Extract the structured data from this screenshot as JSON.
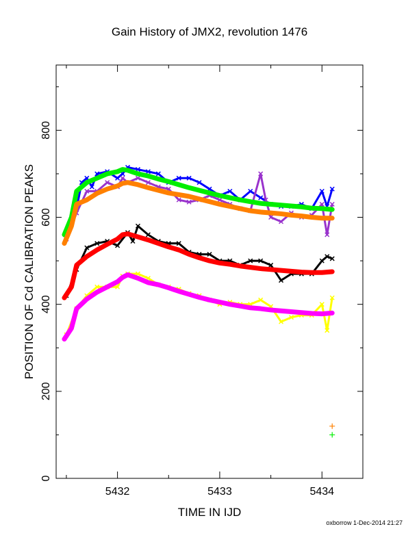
{
  "chart_data": {
    "type": "line",
    "title": "Gain History of JMX2, revolution 1476",
    "xlabel": "TIME IN IJD",
    "ylabel": "POSITION OF Cd CALIBRATION PEAKS",
    "xlim": [
      5431.4,
      5434.4
    ],
    "ylim": [
      0,
      950
    ],
    "xticks": [
      5432,
      5433,
      5434
    ],
    "yticks": [
      0,
      200,
      400,
      600,
      800
    ],
    "grid": false,
    "legend": "none",
    "footer": "oxborrow 1-Dec-2014 21:27",
    "series": [
      {
        "color": "#0000ff",
        "style": "scatter-line",
        "x": [
          5431.5,
          5431.6,
          5431.65,
          5431.7,
          5431.75,
          5431.8,
          5431.9,
          5432.0,
          5432.05,
          5432.1,
          5432.2,
          5432.3,
          5432.4,
          5432.5,
          5432.6,
          5432.7,
          5432.8,
          5432.9,
          5433.0,
          5433.1,
          5433.2,
          5433.3,
          5433.4,
          5433.5,
          5433.6,
          5433.7,
          5433.8,
          5433.9,
          5434.0,
          5434.05,
          5434.1
        ],
        "values": [
          560,
          620,
          680,
          690,
          670,
          700,
          705,
          690,
          700,
          715,
          710,
          705,
          700,
          680,
          690,
          690,
          680,
          665,
          650,
          660,
          640,
          660,
          645,
          630,
          625,
          625,
          630,
          620,
          660,
          625,
          665
        ]
      },
      {
        "color": "#9933cc",
        "style": "scatter-line",
        "x": [
          5431.5,
          5431.6,
          5431.7,
          5431.8,
          5431.9,
          5432.0,
          5432.05,
          5432.1,
          5432.2,
          5432.3,
          5432.4,
          5432.5,
          5432.6,
          5432.7,
          5432.8,
          5432.9,
          5433.0,
          5433.1,
          5433.2,
          5433.3,
          5433.4,
          5433.45,
          5433.5,
          5433.6,
          5433.7,
          5433.8,
          5433.9,
          5434.0,
          5434.05,
          5434.1
        ],
        "values": [
          550,
          610,
          660,
          660,
          680,
          670,
          690,
          680,
          690,
          680,
          670,
          665,
          640,
          635,
          640,
          650,
          640,
          630,
          620,
          615,
          700,
          640,
          600,
          590,
          610,
          600,
          605,
          630,
          560,
          630
        ]
      },
      {
        "color": "#00ee00",
        "style": "line",
        "x": [
          5431.48,
          5431.55,
          5431.6,
          5431.7,
          5431.8,
          5431.9,
          5432.0,
          5432.05,
          5432.1,
          5432.2,
          5432.3,
          5432.4,
          5432.5,
          5432.6,
          5432.7,
          5432.8,
          5432.9,
          5433.0,
          5433.1,
          5433.2,
          5433.3,
          5433.4,
          5433.5,
          5433.6,
          5433.7,
          5433.8,
          5433.9,
          5434.0,
          5434.1
        ],
        "values": [
          560,
          600,
          660,
          680,
          690,
          700,
          705,
          710,
          708,
          700,
          695,
          688,
          682,
          675,
          668,
          662,
          656,
          650,
          645,
          640,
          636,
          632,
          630,
          628,
          626,
          624,
          621,
          620,
          618
        ]
      },
      {
        "color": "#ff8000",
        "style": "line",
        "x": [
          5431.48,
          5431.55,
          5431.6,
          5431.7,
          5431.8,
          5431.9,
          5432.0,
          5432.05,
          5432.1,
          5432.2,
          5432.3,
          5432.4,
          5432.5,
          5432.6,
          5432.7,
          5432.8,
          5432.9,
          5433.0,
          5433.1,
          5433.2,
          5433.3,
          5433.4,
          5433.5,
          5433.6,
          5433.7,
          5433.8,
          5433.9,
          5434.0,
          5434.1
        ],
        "values": [
          540,
          580,
          630,
          640,
          655,
          665,
          672,
          678,
          680,
          675,
          668,
          662,
          656,
          652,
          648,
          642,
          636,
          630,
          625,
          620,
          615,
          612,
          610,
          608,
          605,
          603,
          600,
          598,
          598
        ]
      },
      {
        "color": "#000000",
        "style": "scatter-line",
        "x": [
          5431.5,
          5431.6,
          5431.7,
          5431.8,
          5431.9,
          5432.0,
          5432.1,
          5432.15,
          5432.2,
          5432.3,
          5432.4,
          5432.5,
          5432.6,
          5432.7,
          5432.8,
          5432.9,
          5433.0,
          5433.1,
          5433.2,
          5433.3,
          5433.4,
          5433.5,
          5433.6,
          5433.7,
          5433.8,
          5433.9,
          5434.0,
          5434.05,
          5434.1
        ],
        "values": [
          420,
          480,
          530,
          540,
          545,
          535,
          565,
          545,
          580,
          560,
          545,
          540,
          540,
          520,
          515,
          515,
          500,
          500,
          490,
          500,
          500,
          490,
          455,
          470,
          470,
          470,
          500,
          510,
          505
        ]
      },
      {
        "color": "#ff0000",
        "style": "line",
        "x": [
          5431.48,
          5431.55,
          5431.6,
          5431.7,
          5431.8,
          5431.9,
          5432.0,
          5432.05,
          5432.1,
          5432.2,
          5432.3,
          5432.4,
          5432.5,
          5432.6,
          5432.7,
          5432.8,
          5432.9,
          5433.0,
          5433.1,
          5433.2,
          5433.3,
          5433.4,
          5433.5,
          5433.6,
          5433.7,
          5433.8,
          5433.9,
          5434.0,
          5434.1
        ],
        "values": [
          415,
          440,
          490,
          510,
          525,
          538,
          550,
          560,
          562,
          555,
          548,
          540,
          532,
          525,
          515,
          507,
          500,
          495,
          492,
          488,
          485,
          482,
          480,
          478,
          476,
          474,
          473,
          473,
          475
        ]
      },
      {
        "color": "#ffff00",
        "style": "scatter-line",
        "x": [
          5431.5,
          5431.6,
          5431.7,
          5431.8,
          5431.9,
          5432.0,
          5432.05,
          5432.1,
          5432.2,
          5432.3,
          5432.4,
          5432.5,
          5432.6,
          5432.7,
          5432.8,
          5432.9,
          5433.0,
          5433.1,
          5433.2,
          5433.3,
          5433.4,
          5433.5,
          5433.6,
          5433.7,
          5433.8,
          5433.9,
          5434.0,
          5434.05,
          5434.1
        ],
        "values": [
          330,
          390,
          420,
          440,
          440,
          440,
          465,
          470,
          470,
          460,
          445,
          440,
          435,
          425,
          420,
          410,
          400,
          405,
          400,
          400,
          410,
          395,
          360,
          370,
          375,
          375,
          400,
          340,
          415
        ]
      },
      {
        "color": "#ff00ff",
        "style": "line",
        "x": [
          5431.48,
          5431.55,
          5431.6,
          5431.7,
          5431.8,
          5431.9,
          5432.0,
          5432.05,
          5432.1,
          5432.2,
          5432.3,
          5432.4,
          5432.5,
          5432.6,
          5432.7,
          5432.8,
          5432.9,
          5433.0,
          5433.1,
          5433.2,
          5433.3,
          5433.4,
          5433.5,
          5433.6,
          5433.7,
          5433.8,
          5433.9,
          5434.0,
          5434.1
        ],
        "values": [
          320,
          345,
          390,
          412,
          428,
          440,
          452,
          462,
          468,
          460,
          450,
          445,
          438,
          430,
          423,
          416,
          410,
          405,
          400,
          396,
          392,
          390,
          387,
          385,
          383,
          381,
          379,
          378,
          380
        ]
      },
      {
        "color": "#ff8000",
        "style": "marker",
        "x": [
          5434.1
        ],
        "values": [
          120
        ]
      },
      {
        "color": "#00ee00",
        "style": "marker",
        "x": [
          5434.1
        ],
        "values": [
          100
        ]
      }
    ]
  },
  "colors": {
    "axis": "#000000",
    "background": "#ffffff"
  }
}
